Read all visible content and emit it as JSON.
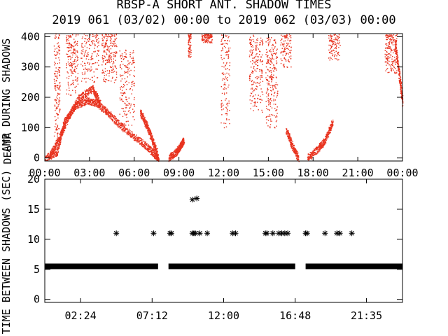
{
  "title": "RBSP-A SHORT ANT. SHADOW TIMES",
  "subtitle": "2019 061 (03/02) 00:00 to 2019 062 (03/03) 00:00",
  "colors": {
    "axis": "#000000",
    "top_points": "#e8321e",
    "bottom_points": "#000000",
    "background": "#ffffff"
  },
  "chart_data": [
    {
      "type": "scatter",
      "name": "top",
      "ylabel": "AMP DURING SHADOWS",
      "ylabel_overlap": "DELTA",
      "xlim": [
        0,
        24
      ],
      "ylim": [
        -10,
        410
      ],
      "xticks": [
        0,
        3,
        6,
        9,
        12,
        15,
        18,
        21,
        24
      ],
      "xtick_labels": [
        "00:00",
        "03:00",
        "06:00",
        "09:00",
        "12:00",
        "15:00",
        "18:00",
        "21:00",
        "00:00"
      ],
      "yticks": [
        0,
        100,
        200,
        300,
        400
      ],
      "ytick_labels": [
        "0",
        "100",
        "200",
        "300",
        "400"
      ],
      "point_color": "#e8321e",
      "curves": [
        [
          0.0,
          0,
          0.8,
          20,
          1.3,
          120,
          2.0,
          170,
          2.8,
          190,
          3.5,
          180,
          4.2,
          150,
          5.0,
          110,
          6.0,
          70,
          6.8,
          40,
          7.4,
          10,
          7.6,
          0
        ],
        [
          0.3,
          10,
          0.9,
          60,
          1.6,
          140,
          2.3,
          200,
          3.2,
          230,
          3.7,
          180
        ],
        [
          6.4,
          150,
          6.8,
          110,
          7.2,
          60,
          7.5,
          20
        ],
        [
          8.3,
          0,
          8.8,
          20,
          9.1,
          40,
          9.3,
          60
        ],
        [
          16.2,
          90,
          16.6,
          40,
          17.0,
          0
        ],
        [
          17.6,
          0,
          18.3,
          30,
          18.8,
          60,
          19.3,
          120
        ],
        [
          23.5,
          380,
          23.8,
          260,
          24.0,
          180
        ]
      ],
      "clouds": [
        [
          0.6,
          1.0,
          60,
          410,
          0.6
        ],
        [
          1.4,
          2.2,
          200,
          410,
          0.7
        ],
        [
          2.4,
          3.6,
          250,
          410,
          0.6
        ],
        [
          3.8,
          4.8,
          250,
          410,
          0.8
        ],
        [
          5.0,
          6.0,
          100,
          360,
          0.7
        ],
        [
          9.6,
          9.8,
          330,
          410,
          0.3
        ],
        [
          10.5,
          11.2,
          380,
          410,
          0.4
        ],
        [
          11.8,
          12.4,
          100,
          410,
          0.5
        ],
        [
          13.7,
          14.6,
          150,
          410,
          0.8
        ],
        [
          14.8,
          15.6,
          100,
          400,
          0.9
        ],
        [
          15.8,
          16.5,
          300,
          410,
          0.4
        ],
        [
          19.0,
          19.8,
          320,
          410,
          0.4
        ],
        [
          22.8,
          23.6,
          280,
          410,
          0.7
        ]
      ]
    },
    {
      "type": "scatter",
      "name": "bottom",
      "ylabel": "TIME BETWEEN SHADOWS (SEC)",
      "xlim": [
        0,
        24
      ],
      "ylim": [
        -0.5,
        20
      ],
      "xtick_labels": [
        "02:24",
        "07:12",
        "12:00",
        "16:48",
        "21:35"
      ],
      "xtick_values": [
        2.4,
        7.2,
        12.0,
        16.8,
        21.5833
      ],
      "yticks": [
        0,
        5,
        10,
        15,
        20
      ],
      "ytick_labels": [
        "0",
        "5",
        "10",
        "15",
        "20"
      ],
      "point_color": "#000000",
      "baseline": {
        "y": 5.5,
        "segments": [
          [
            0.0,
            7.6
          ],
          [
            8.3,
            16.8
          ],
          [
            17.5,
            24.0
          ]
        ]
      },
      "points": [
        [
          4.8,
          11
        ],
        [
          7.3,
          11
        ],
        [
          8.4,
          11
        ],
        [
          8.5,
          11
        ],
        [
          9.9,
          16.6
        ],
        [
          10.2,
          16.8
        ],
        [
          9.9,
          11
        ],
        [
          10.0,
          11
        ],
        [
          10.1,
          11
        ],
        [
          10.4,
          11
        ],
        [
          10.9,
          11
        ],
        [
          12.6,
          11
        ],
        [
          12.8,
          11
        ],
        [
          14.8,
          11
        ],
        [
          14.9,
          11
        ],
        [
          15.3,
          11
        ],
        [
          15.7,
          11
        ],
        [
          15.9,
          11
        ],
        [
          16.1,
          11
        ],
        [
          16.3,
          11
        ],
        [
          17.5,
          11
        ],
        [
          17.6,
          11
        ],
        [
          18.8,
          11
        ],
        [
          19.6,
          11
        ],
        [
          19.8,
          11
        ],
        [
          20.6,
          11
        ]
      ]
    }
  ]
}
